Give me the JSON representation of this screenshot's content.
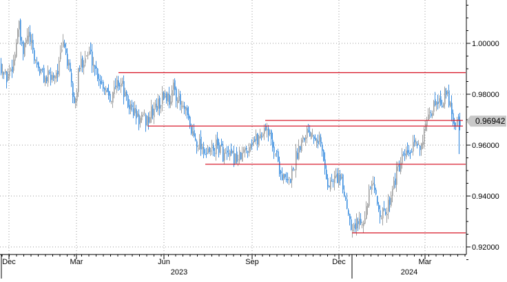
{
  "chart_data": {
    "type": "candlestick",
    "title": "",
    "xlabel": "",
    "ylabel": "",
    "x_ticks": [
      "Dec",
      "Mar",
      "Jun",
      "Sep",
      "Dec",
      "Mar"
    ],
    "year_labels": [
      "2023",
      "2024"
    ],
    "y_ticks": [
      "0.92000",
      "0.94000",
      "0.96000",
      "0.98000",
      "1.00000"
    ],
    "ylim": [
      0.9155,
      1.017
    ],
    "grid": true,
    "axis_side": "right",
    "last_value_label": "0.96942",
    "last_value": 0.96942,
    "colors": {
      "up": "#a0a0a0",
      "down": "#3d8fe0",
      "levels": "#d81b2b",
      "label_bg": "#c8c8c8",
      "grid": "#9a9a9a"
    },
    "levels": [
      0.9885,
      0.9697,
      0.9675,
      0.9525,
      0.9255
    ],
    "price_path": [
      [
        0,
        0.992
      ],
      [
        8,
        0.986
      ],
      [
        15,
        0.99
      ],
      [
        20,
        0.994
      ],
      [
        26,
        1.008
      ],
      [
        32,
        0.995
      ],
      [
        40,
        1.004
      ],
      [
        48,
        0.995
      ],
      [
        56,
        0.99
      ],
      [
        65,
        0.986
      ],
      [
        75,
        0.987
      ],
      [
        84,
        0.99
      ],
      [
        92,
        1.001
      ],
      [
        100,
        0.988
      ],
      [
        108,
        0.975
      ],
      [
        114,
        0.99
      ],
      [
        122,
        0.995
      ],
      [
        130,
        0.996
      ],
      [
        138,
        0.99
      ],
      [
        146,
        0.985
      ],
      [
        154,
        0.982
      ],
      [
        162,
        0.979
      ],
      [
        170,
        0.985
      ],
      [
        176,
        0.984
      ],
      [
        184,
        0.976
      ],
      [
        192,
        0.974
      ],
      [
        200,
        0.97
      ],
      [
        208,
        0.97
      ],
      [
        214,
        0.97
      ],
      [
        222,
        0.974
      ],
      [
        230,
        0.976
      ],
      [
        238,
        0.98
      ],
      [
        246,
        0.978
      ],
      [
        252,
        0.983
      ],
      [
        260,
        0.976
      ],
      [
        268,
        0.973
      ],
      [
        276,
        0.966
      ],
      [
        284,
        0.962
      ],
      [
        292,
        0.96
      ],
      [
        300,
        0.956
      ],
      [
        308,
        0.958
      ],
      [
        316,
        0.96
      ],
      [
        324,
        0.956
      ],
      [
        332,
        0.955
      ],
      [
        340,
        0.955
      ],
      [
        348,
        0.955
      ],
      [
        356,
        0.958
      ],
      [
        364,
        0.962
      ],
      [
        372,
        0.962
      ],
      [
        380,
        0.965
      ],
      [
        386,
        0.968
      ],
      [
        392,
        0.962
      ],
      [
        400,
        0.957
      ],
      [
        406,
        0.95
      ],
      [
        412,
        0.946
      ],
      [
        418,
        0.945
      ],
      [
        424,
        0.95
      ],
      [
        430,
        0.956
      ],
      [
        436,
        0.962
      ],
      [
        442,
        0.965
      ],
      [
        448,
        0.966
      ],
      [
        456,
        0.965
      ],
      [
        464,
        0.962
      ],
      [
        470,
        0.952
      ],
      [
        476,
        0.944
      ],
      [
        482,
        0.946
      ],
      [
        490,
        0.948
      ],
      [
        496,
        0.944
      ],
      [
        502,
        0.938
      ],
      [
        508,
        0.93
      ],
      [
        514,
        0.928
      ],
      [
        520,
        0.93
      ],
      [
        526,
        0.932
      ],
      [
        532,
        0.935
      ],
      [
        538,
        0.945
      ],
      [
        544,
        0.94
      ],
      [
        550,
        0.935
      ],
      [
        556,
        0.932
      ],
      [
        562,
        0.935
      ],
      [
        568,
        0.943
      ],
      [
        574,
        0.948
      ],
      [
        580,
        0.952
      ],
      [
        586,
        0.955
      ],
      [
        592,
        0.956
      ],
      [
        598,
        0.958
      ],
      [
        604,
        0.96
      ],
      [
        610,
        0.961
      ],
      [
        616,
        0.965
      ],
      [
        622,
        0.97
      ],
      [
        628,
        0.975
      ],
      [
        634,
        0.979
      ],
      [
        640,
        0.977
      ],
      [
        646,
        0.98
      ],
      [
        652,
        0.978
      ],
      [
        658,
        0.969
      ],
      [
        664,
        0.97
      ],
      [
        668,
        0.97
      ]
    ],
    "last_spike_low": 0.9565
  }
}
